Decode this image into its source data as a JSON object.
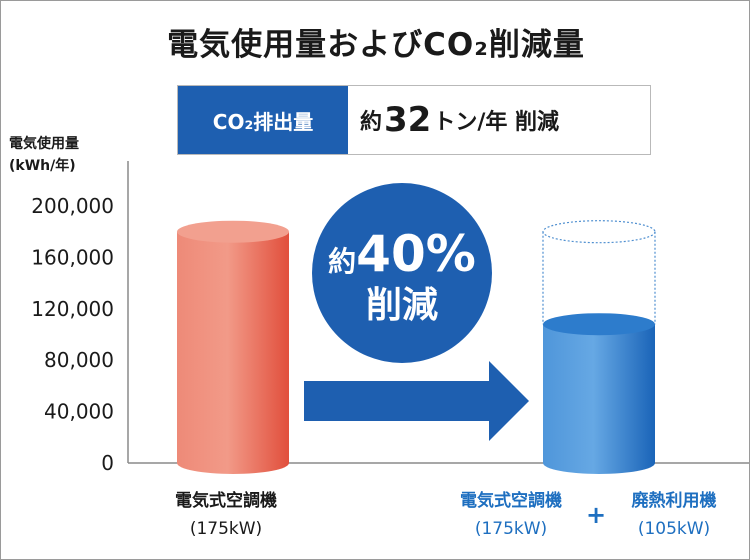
{
  "title": "電気使用量およびCO₂削減量",
  "banner": {
    "label": "CO₂排出量",
    "prefix": "約",
    "value": "32",
    "suffix": "トン/年 削減"
  },
  "badge": {
    "line1_prefix": "約",
    "line1_value": "40%",
    "line2": "削減",
    "color": "#1e5fb0"
  },
  "chart_data": {
    "type": "bar",
    "ylabel": [
      "電気使用量",
      "(kWh/年)"
    ],
    "ylim": [
      0,
      200000
    ],
    "yticks": [
      0,
      40000,
      80000,
      120000,
      160000,
      200000
    ],
    "yticks_labels": [
      "0",
      "40,000",
      "80,000",
      "120,000",
      "160,000",
      "200,000"
    ],
    "categories": [
      "電気式空調機 (175kW)",
      "電気式空調機 (175kW) + 廃熱利用機 (105kW)"
    ],
    "series": [
      {
        "values": [
          180000,
          108000
        ]
      }
    ],
    "colors": {
      "before": "#e8604f",
      "after": "#1f73c6",
      "arrow": "#1e5fb0"
    }
  },
  "labels": {
    "left_name": "電気式空調機",
    "left_sub": "(175kW)",
    "right1_name": "電気式空調機",
    "right1_sub": "(175kW)",
    "plus": "+",
    "right2_name": "廃熱利用機",
    "right2_sub": "(105kW)"
  }
}
